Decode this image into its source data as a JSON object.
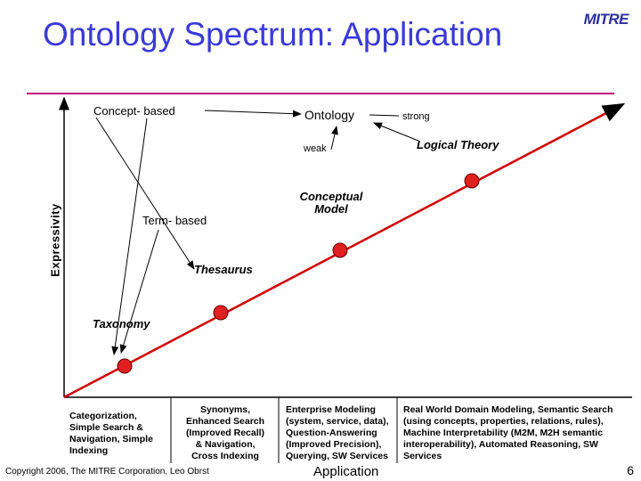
{
  "title": "Ontology Spectrum: Application",
  "logo": "MITRE",
  "y_axis_label": "Expressivity",
  "labels": {
    "concept_based": "Concept- based",
    "ontology": "Ontology",
    "strong": "strong",
    "weak": "weak",
    "logical_theory": "Logical Theory",
    "term_based": "Term- based",
    "conceptual_model": "Conceptual Model",
    "thesaurus": "Thesaurus",
    "taxonomy": "Taxonomy"
  },
  "applications": {
    "col1": "Categorization,\nSimple Search &\nNavigation, Simple\nIndexing",
    "col2": "Synonyms,\nEnhanced Search\n(Improved Recall)\n& Navigation,\nCross Indexing",
    "col3": "Enterprise Modeling\n(system, service, data),\nQuestion-Answering\n(Improved Precision),\nQuerying, SW Services",
    "col4": "Real World Domain Modeling, Semantic Search\n(using concepts, properties, relations, rules),\nMachine Interpretability (M2M, M2H semantic\ninteroperability), Automated Reasoning, SW\nServices"
  },
  "x_axis_label": "Application",
  "footer": "Copyright 2006, The MITRE Corporation, Leo Obrst",
  "page_number": "6",
  "colors": {
    "title": "#3a3ad8",
    "rule": "#c8007a",
    "marker": "#e02020",
    "logo": "#2e2ea0"
  }
}
